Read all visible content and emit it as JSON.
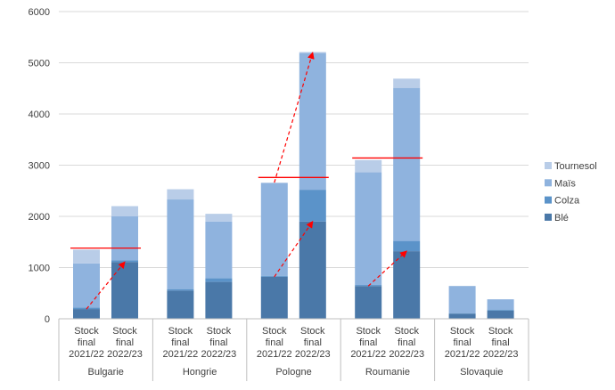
{
  "chart_data": {
    "type": "bar",
    "stacked": true,
    "ylim": [
      0,
      6000
    ],
    "yticks": [
      0,
      1000,
      2000,
      3000,
      4000,
      5000,
      6000
    ],
    "grid": true,
    "legend_position": "right",
    "groups": [
      {
        "name": "Bulgarie",
        "categories": [
          "Stock final 2021/22",
          "Stock final 2022/23"
        ]
      },
      {
        "name": "Hongrie",
        "categories": [
          "Stock final 2021/22",
          "Stock final 2022/23"
        ]
      },
      {
        "name": "Pologne",
        "categories": [
          "Stock final 2021/22",
          "Stock final 2022/23"
        ]
      },
      {
        "name": "Roumanie",
        "categories": [
          "Stock final 2021/22",
          "Stock final 2022/23"
        ]
      },
      {
        "name": "Slovaquie",
        "categories": [
          "Stock final 2021/22",
          "Stock final 2022/23"
        ]
      }
    ],
    "series": [
      {
        "name": "Blé",
        "color": "#4a78a8",
        "values": [
          190,
          1110,
          550,
          720,
          820,
          1900,
          640,
          1320,
          100,
          160
        ]
      },
      {
        "name": "Colza",
        "color": "#5b93c9",
        "values": [
          30,
          30,
          30,
          70,
          20,
          620,
          20,
          200,
          10,
          20
        ]
      },
      {
        "name": "Maïs",
        "color": "#8fb3de",
        "values": [
          860,
          860,
          1750,
          1110,
          1810,
          2670,
          2200,
          2990,
          530,
          200
        ]
      },
      {
        "name": "Tournesol",
        "color": "#b9cde8",
        "values": [
          270,
          200,
          200,
          150,
          10,
          20,
          240,
          180,
          0,
          0
        ]
      }
    ],
    "reference_lines": [
      {
        "group": "Bulgarie",
        "value": 1380
      },
      {
        "group": "Pologne",
        "value": 2760
      },
      {
        "group": "Roumanie",
        "value": 3140
      }
    ],
    "arrows": [
      {
        "from_bar": 0,
        "from_value": 190,
        "to_bar": 1,
        "to_value": 1110
      },
      {
        "from_bar": 4,
        "from_value": 820,
        "to_bar": 5,
        "to_value": 1900
      },
      {
        "from_bar": 4,
        "from_value": 2660,
        "to_bar": 5,
        "to_value": 5200
      },
      {
        "from_bar": 6,
        "from_value": 640,
        "to_bar": 7,
        "to_value": 1320
      }
    ],
    "colors": {
      "reference_line": "#ff0000",
      "arrow": "#ff0000"
    }
  }
}
